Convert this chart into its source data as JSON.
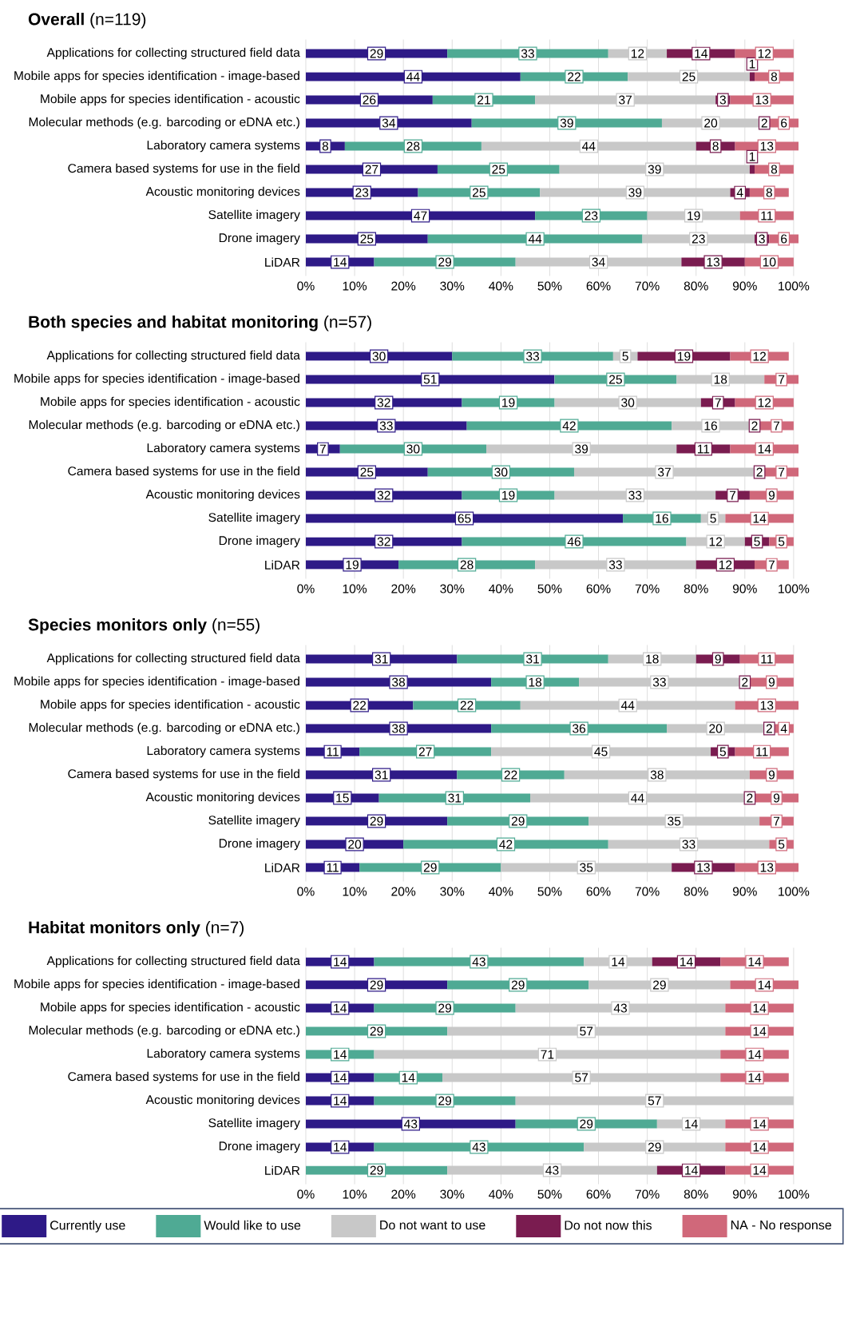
{
  "chart_data": [
    {
      "type": "bar",
      "orientation": "horizontal",
      "stacked": true,
      "title": "**Overall** (n=119)",
      "categories": [
        "Applications for collecting structured field data",
        "Mobile apps for species identification - image-based",
        "Mobile apps for species identification - acoustic",
        "Molecular methods (e.g. barcoding or eDNA etc.)",
        "Laboratory camera systems",
        "Camera based systems for use in the field",
        "Acoustic monitoring devices",
        "Satellite imagery",
        "Drone imagery",
        "LiDAR"
      ],
      "series": [
        {
          "color": "#2e1a87",
          "values": [
            29,
            44,
            26,
            34,
            8,
            27,
            23,
            47,
            25,
            14
          ]
        },
        {
          "color": "#4faa94",
          "values": [
            33,
            22,
            21,
            39,
            28,
            25,
            25,
            23,
            44,
            29
          ]
        },
        {
          "color": "#c8c8c8",
          "values": [
            12,
            25,
            37,
            20,
            44,
            39,
            39,
            19,
            23,
            34
          ]
        },
        {
          "color": "#7a1c50",
          "values": [
            14,
            1,
            3,
            2,
            8,
            1,
            4,
            null,
            3,
            13
          ]
        },
        {
          "color": "#d0687a",
          "values": [
            12,
            8,
            13,
            6,
            13,
            8,
            8,
            11,
            6,
            10
          ]
        }
      ],
      "xlim": [
        0,
        101
      ],
      "xticks": [
        {
          "value": 0,
          "label": "0%"
        },
        {
          "value": 10,
          "label": "10%"
        },
        {
          "value": 20,
          "label": "20%"
        },
        {
          "value": 30,
          "label": "30%"
        },
        {
          "value": 40,
          "label": "40%"
        },
        {
          "value": 50,
          "label": "50%"
        },
        {
          "value": 60,
          "label": "60%"
        },
        {
          "value": 70,
          "label": "70%"
        },
        {
          "value": 80,
          "label": "80%"
        },
        {
          "value": 90,
          "label": "90%"
        },
        {
          "value": 100,
          "label": "100%"
        }
      ],
      "grid": "x",
      "data_labels": true
    },
    {
      "type": "bar",
      "orientation": "horizontal",
      "stacked": true,
      "title": "**Both species and habitat monitoring** (n=57)",
      "categories": [
        "Applications for collecting structured field data",
        "Mobile apps for species identification - image-based",
        "Mobile apps for species identification - acoustic",
        "Molecular methods (e.g. barcoding or eDNA etc.)",
        "Laboratory camera systems",
        "Camera based systems for use in the field",
        "Acoustic monitoring devices",
        "Satellite imagery",
        "Drone imagery",
        "LiDAR"
      ],
      "series": [
        {
          "color": "#2e1a87",
          "values": [
            30,
            51,
            32,
            33,
            7,
            25,
            32,
            65,
            32,
            19
          ]
        },
        {
          "color": "#4faa94",
          "values": [
            33,
            25,
            19,
            42,
            30,
            30,
            19,
            16,
            46,
            28
          ]
        },
        {
          "color": "#c8c8c8",
          "values": [
            5,
            18,
            30,
            16,
            39,
            37,
            33,
            5,
            12,
            33
          ]
        },
        {
          "color": "#7a1c50",
          "values": [
            19,
            null,
            7,
            2,
            11,
            2,
            7,
            null,
            5,
            12
          ]
        },
        {
          "color": "#d0687a",
          "values": [
            12,
            7,
            12,
            7,
            14,
            7,
            9,
            14,
            5,
            7
          ]
        }
      ],
      "xlim": [
        0,
        101
      ],
      "xticks": [
        {
          "value": 0,
          "label": "0%"
        },
        {
          "value": 10,
          "label": "10%"
        },
        {
          "value": 20,
          "label": "20%"
        },
        {
          "value": 30,
          "label": "30%"
        },
        {
          "value": 40,
          "label": "40%"
        },
        {
          "value": 50,
          "label": "50%"
        },
        {
          "value": 60,
          "label": "60%"
        },
        {
          "value": 70,
          "label": "70%"
        },
        {
          "value": 80,
          "label": "80%"
        },
        {
          "value": 90,
          "label": "90%"
        },
        {
          "value": 100,
          "label": "100%"
        }
      ],
      "grid": "x",
      "data_labels": true
    },
    {
      "type": "bar",
      "orientation": "horizontal",
      "stacked": true,
      "title": "**Species monitors only** (n=55)",
      "categories": [
        "Applications for collecting structured field data",
        "Mobile apps for species identification - image-based",
        "Mobile apps for species identification - acoustic",
        "Molecular methods (e.g. barcoding or eDNA etc.)",
        "Laboratory camera systems",
        "Camera based systems for use in the field",
        "Acoustic monitoring devices",
        "Satellite imagery",
        "Drone imagery",
        "LiDAR"
      ],
      "series": [
        {
          "color": "#2e1a87",
          "values": [
            31,
            38,
            22,
            38,
            11,
            31,
            15,
            29,
            20,
            11
          ]
        },
        {
          "color": "#4faa94",
          "values": [
            31,
            18,
            22,
            36,
            27,
            22,
            31,
            29,
            42,
            29
          ]
        },
        {
          "color": "#c8c8c8",
          "values": [
            18,
            33,
            44,
            20,
            45,
            38,
            44,
            35,
            33,
            35
          ]
        },
        {
          "color": "#7a1c50",
          "values": [
            9,
            2,
            null,
            2,
            5,
            null,
            2,
            null,
            null,
            13
          ]
        },
        {
          "color": "#d0687a",
          "values": [
            11,
            9,
            13,
            4,
            11,
            9,
            9,
            7,
            5,
            13
          ]
        }
      ],
      "xlim": [
        0,
        101
      ],
      "xticks": [
        {
          "value": 0,
          "label": "0%"
        },
        {
          "value": 10,
          "label": "10%"
        },
        {
          "value": 20,
          "label": "20%"
        },
        {
          "value": 30,
          "label": "30%"
        },
        {
          "value": 40,
          "label": "40%"
        },
        {
          "value": 50,
          "label": "50%"
        },
        {
          "value": 60,
          "label": "60%"
        },
        {
          "value": 70,
          "label": "70%"
        },
        {
          "value": 80,
          "label": "80%"
        },
        {
          "value": 90,
          "label": "90%"
        },
        {
          "value": 100,
          "label": "100%"
        }
      ],
      "grid": "x",
      "data_labels": true
    },
    {
      "type": "bar",
      "orientation": "horizontal",
      "stacked": true,
      "title": "**Habitat monitors only** (n=7)",
      "categories": [
        "Applications for collecting structured field data",
        "Mobile apps for species identification - image-based",
        "Mobile apps for species identification - acoustic",
        "Molecular methods (e.g. barcoding or eDNA etc.)",
        "Laboratory camera systems",
        "Camera based systems for use in the field",
        "Acoustic monitoring devices",
        "Satellite imagery",
        "Drone imagery",
        "LiDAR"
      ],
      "series": [
        {
          "name": "Currently use",
          "color": "#2e1a87",
          "values": [
            14,
            29,
            14,
            null,
            null,
            14,
            14,
            43,
            14,
            null
          ]
        },
        {
          "name": "Would like to use",
          "color": "#4faa94",
          "values": [
            43,
            29,
            29,
            29,
            14,
            14,
            29,
            29,
            43,
            29
          ]
        },
        {
          "name": "Do not want to use",
          "color": "#c8c8c8",
          "values": [
            14,
            29,
            43,
            57,
            71,
            57,
            57,
            14,
            29,
            43
          ]
        },
        {
          "name": "Do not now this",
          "color": "#7a1c50",
          "values": [
            14,
            null,
            null,
            null,
            null,
            null,
            null,
            null,
            null,
            14
          ]
        },
        {
          "name": "NA - No response",
          "color": "#d0687a",
          "values": [
            14,
            14,
            14,
            14,
            14,
            14,
            null,
            14,
            14,
            14
          ]
        }
      ],
      "xlim": [
        0,
        101
      ],
      "xticks": [
        {
          "value": 0,
          "label": "0%"
        },
        {
          "value": 10,
          "label": "10%"
        },
        {
          "value": 20,
          "label": "20%"
        },
        {
          "value": 30,
          "label": "30%"
        },
        {
          "value": 40,
          "label": "40%"
        },
        {
          "value": 50,
          "label": "50%"
        },
        {
          "value": 60,
          "label": "60%"
        },
        {
          "value": 70,
          "label": "70%"
        },
        {
          "value": 80,
          "label": "80%"
        },
        {
          "value": 90,
          "label": "90%"
        },
        {
          "value": 100,
          "label": "100%"
        }
      ],
      "grid": "x",
      "data_labels": true,
      "legend": "bottom"
    }
  ]
}
